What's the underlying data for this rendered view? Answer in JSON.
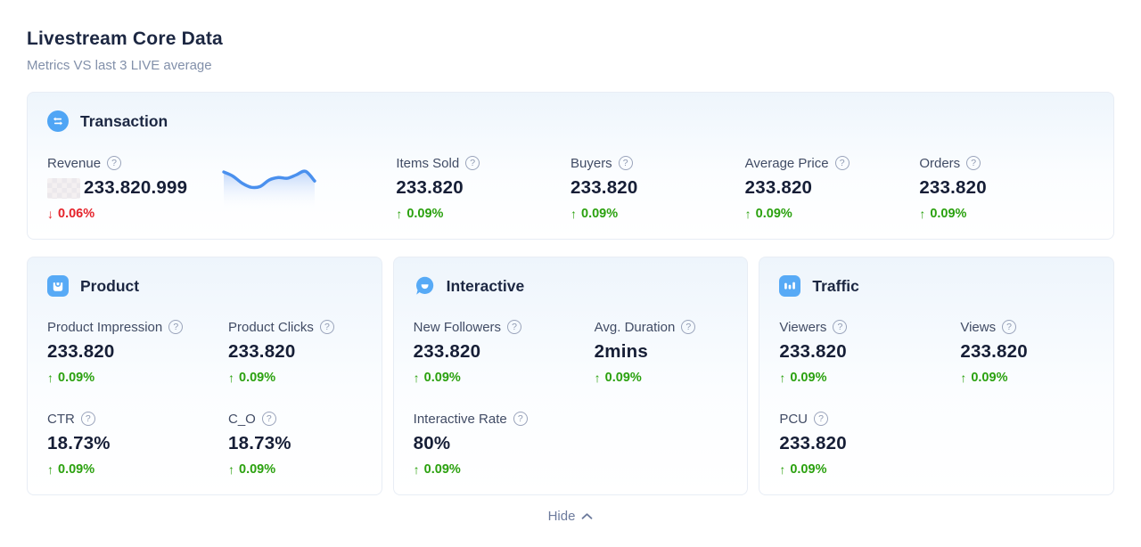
{
  "page": {
    "title": "Livestream Core Data",
    "subtitle": "Metrics VS last 3 LIVE average"
  },
  "glyphs": {
    "help": "?"
  },
  "footer": {
    "hide_label": "Hide"
  },
  "colors": {
    "accent_blue": "#57aaf6",
    "positive_green": "#2ba10f",
    "negative_red": "#e5232b",
    "sparkline_blue": "#4a90ee"
  },
  "cards": {
    "transaction": {
      "title": "Transaction",
      "metrics": [
        {
          "label": "Revenue",
          "value": "233.820.999",
          "arrow": "↓",
          "change": "0.06%",
          "direction": "down",
          "currency_prefix_blurred": true
        },
        {
          "label": "Items Sold",
          "value": "233.820",
          "arrow": "↑",
          "change": "0.09%",
          "direction": "up"
        },
        {
          "label": "Buyers",
          "value": "233.820",
          "arrow": "↑",
          "change": "0.09%",
          "direction": "up"
        },
        {
          "label": "Average Price",
          "value": "233.820",
          "arrow": "↑",
          "change": "0.09%",
          "direction": "up"
        },
        {
          "label": "Orders",
          "value": "233.820",
          "arrow": "↑",
          "change": "0.09%",
          "direction": "up"
        }
      ],
      "sparkline": {
        "type": "area",
        "color": "#4a90ee",
        "points": [
          0.78,
          0.66,
          0.46,
          0.34,
          0.36,
          0.55,
          0.62,
          0.6,
          0.7,
          0.8,
          0.52
        ]
      }
    },
    "product": {
      "title": "Product",
      "metrics": [
        {
          "label": "Product Impression",
          "value": "233.820",
          "arrow": "↑",
          "change": "0.09%",
          "direction": "up"
        },
        {
          "label": "Product Clicks",
          "value": "233.820",
          "arrow": "↑",
          "change": "0.09%",
          "direction": "up"
        },
        {
          "label": "CTR",
          "value": "18.73%",
          "arrow": "↑",
          "change": "0.09%",
          "direction": "up"
        },
        {
          "label": "C_O",
          "value": "18.73%",
          "arrow": "↑",
          "change": "0.09%",
          "direction": "up"
        }
      ]
    },
    "interactive": {
      "title": "Interactive",
      "metrics": [
        {
          "label": "New Followers",
          "value": "233.820",
          "arrow": "↑",
          "change": "0.09%",
          "direction": "up"
        },
        {
          "label": "Avg. Duration",
          "value": "2mins",
          "arrow": "↑",
          "change": "0.09%",
          "direction": "up"
        },
        {
          "label": "Interactive Rate",
          "value": "80%",
          "arrow": "↑",
          "change": "0.09%",
          "direction": "up"
        }
      ]
    },
    "traffic": {
      "title": "Traffic",
      "metrics": [
        {
          "label": "Viewers",
          "value": "233.820",
          "arrow": "↑",
          "change": "0.09%",
          "direction": "up"
        },
        {
          "label": "Views",
          "value": "233.820",
          "arrow": "↑",
          "change": "0.09%",
          "direction": "up"
        },
        {
          "label": "PCU",
          "value": "233.820",
          "arrow": "↑",
          "change": "0.09%",
          "direction": "up"
        }
      ]
    }
  }
}
